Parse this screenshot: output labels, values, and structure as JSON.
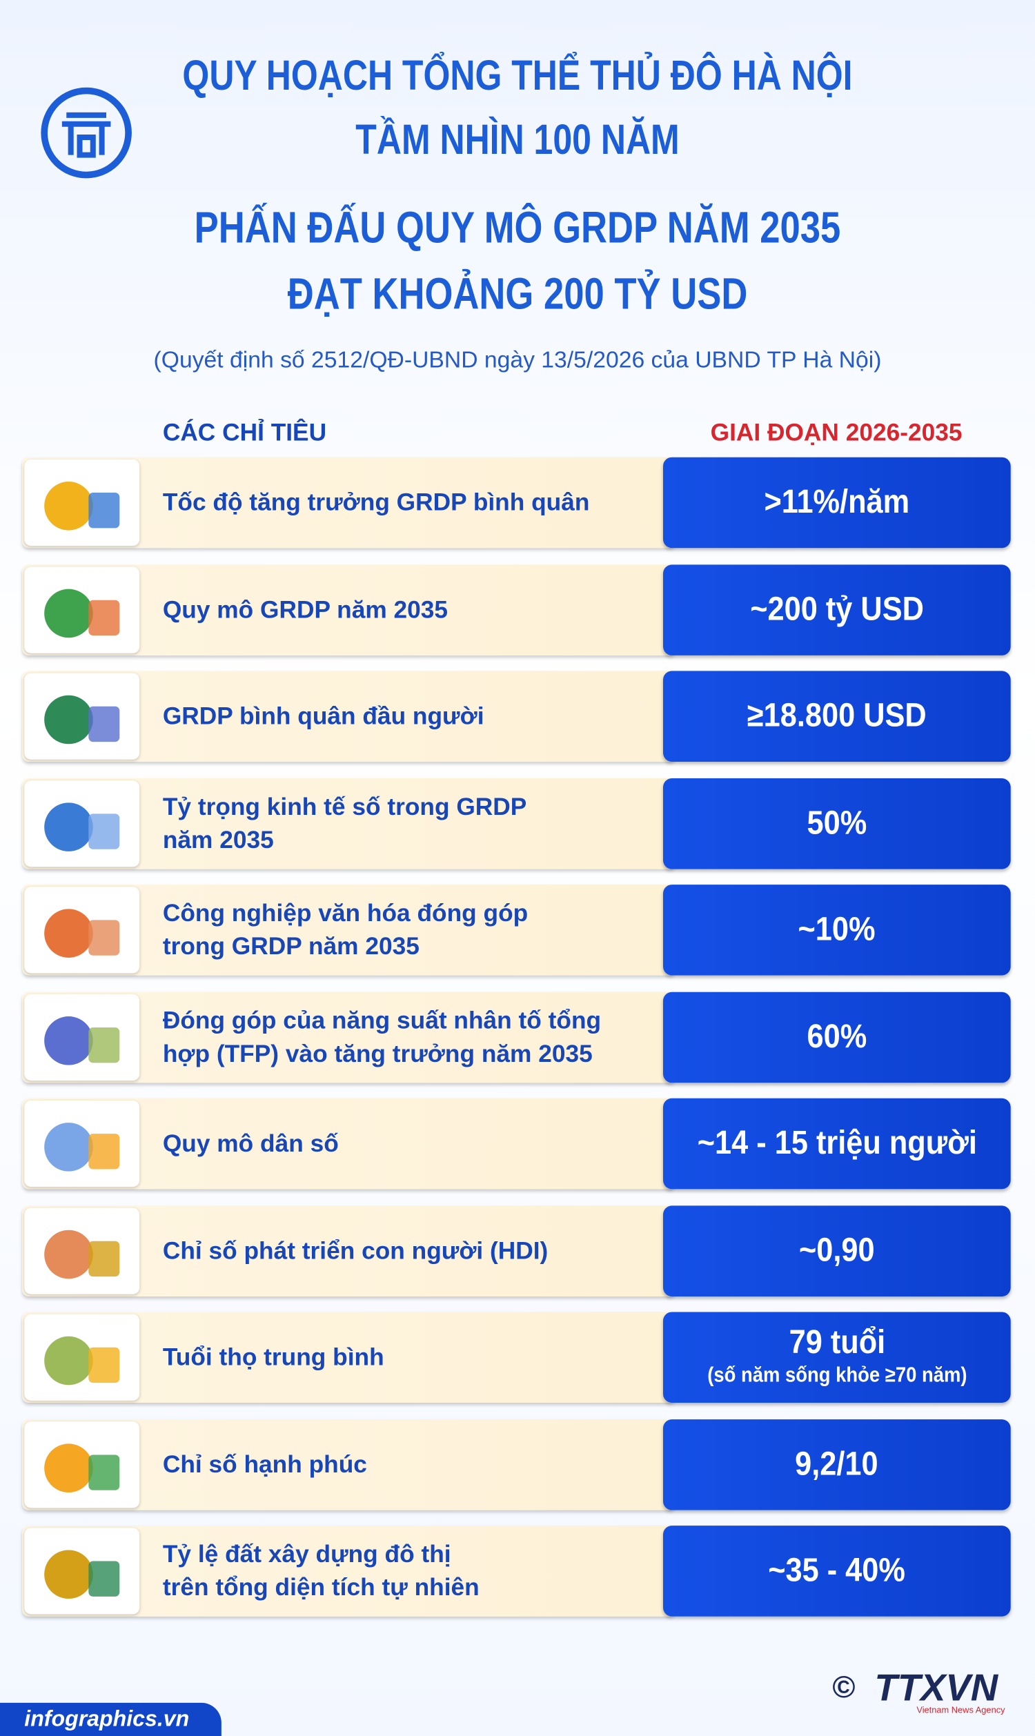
{
  "header": {
    "title_lines": [
      "QUY HOẠCH TỔNG THỂ THỦ ĐÔ HÀ NỘI",
      "TẦM NHÌN 100 NĂM"
    ],
    "headline_lines": [
      "PHẤN ĐẤU  QUY MÔ GRDP NĂM 2035",
      "ĐẠT KHOẢNG 200 TỶ USD"
    ],
    "source": "(Quyết định số 2512/QĐ-UBND ngày 13/5/2026 của UBND TP Hà Nội)"
  },
  "table": {
    "columns": [
      "CÁC CHỈ TIÊU",
      "GIAI ĐOẠN 2026-2035"
    ],
    "rows": [
      {
        "indicator": [
          "Tốc độ tăng trưởng GRDP bình quân"
        ],
        "target": [
          ">11%/năm"
        ]
      },
      {
        "indicator": [
          "Quy mô GRDP năm 2035"
        ],
        "target": [
          "~200 tỷ USD"
        ]
      },
      {
        "indicator": [
          "GRDP bình quân đầu người"
        ],
        "target": [
          "≥18.800 USD"
        ]
      },
      {
        "indicator": [
          "Tỷ trọng kinh tế số trong GRDP",
          "năm 2035"
        ],
        "target": [
          "50%"
        ]
      },
      {
        "indicator": [
          "Công nghiệp văn hóa đóng góp",
          "trong GRDP năm 2035"
        ],
        "target": [
          "~10%"
        ]
      },
      {
        "indicator": [
          "Đóng góp của năng suất nhân tố tổng",
          "hợp (TFP) vào tăng trưởng năm 2035"
        ],
        "target": [
          "60%"
        ]
      },
      {
        "indicator": [
          "Quy mô dân số"
        ],
        "target": [
          "~14 - 15 triệu người"
        ]
      },
      {
        "indicator": [
          "Chỉ số phát triển con người (HDI)"
        ],
        "target": [
          "~0,90"
        ]
      },
      {
        "indicator": [
          "Tuổi thọ trung bình"
        ],
        "target": [
          "79 tuổi",
          "(số năm sống khỏe ≥70 năm)"
        ]
      },
      {
        "indicator": [
          "Chỉ số hạnh phúc"
        ],
        "target": [
          "9,2/10"
        ]
      },
      {
        "indicator": [
          "Tỷ lệ đất xây dựng đô thị",
          "trên tổng diện tích tự nhiên"
        ],
        "target": [
          "~35 - 40%"
        ]
      }
    ]
  },
  "footer": {
    "site": "infographics.vn",
    "copyright": "©",
    "agency": "TTXVN",
    "agency_subtitle": "Vietnam News Agency"
  }
}
